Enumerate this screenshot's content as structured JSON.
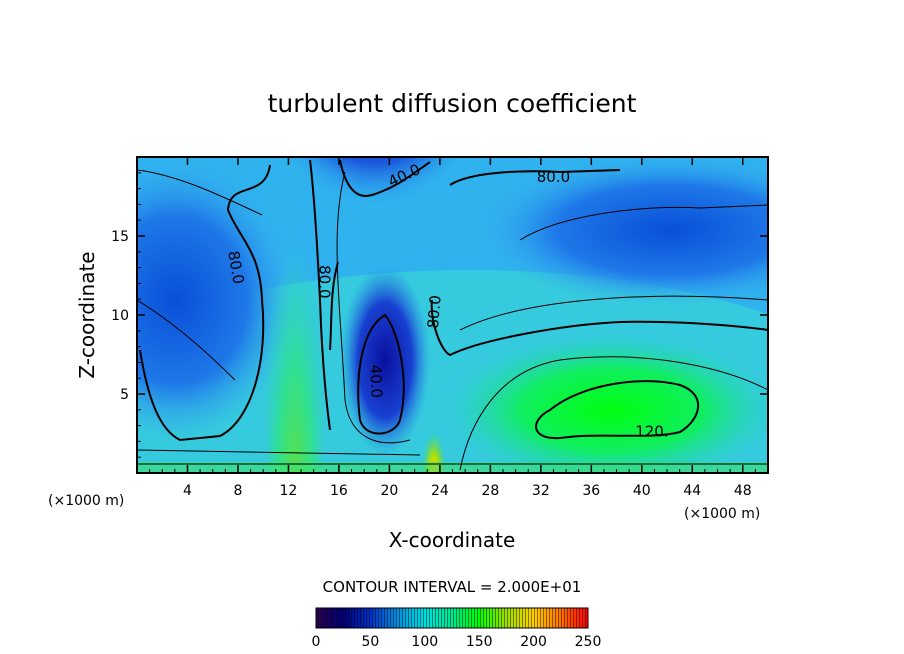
{
  "chart_data": {
    "type": "contour",
    "title": "turbulent diffusion coefficient",
    "xlabel": "X-coordinate",
    "ylabel": "Z-coordinate",
    "x_unit": "(×1000 m)",
    "z_unit": "(×1000 m)",
    "xlim": [
      0,
      50
    ],
    "ylim": [
      0,
      20
    ],
    "x_ticks": [
      4,
      8,
      12,
      16,
      20,
      24,
      28,
      32,
      36,
      40,
      44,
      48
    ],
    "y_ticks": [
      5,
      10,
      15
    ],
    "contour_interval_label": "CONTOUR INTERVAL = 2.000E+01",
    "contour_interval": 20,
    "contour_labels": [
      {
        "text": "80.0",
        "x": 33,
        "y": 18.7,
        "rotate": 0
      },
      {
        "text": "40.0",
        "x": 21.2,
        "y": 18.8,
        "rotate": -25
      },
      {
        "text": "80.0",
        "x": 7.8,
        "y": 13.0,
        "rotate": 80
      },
      {
        "text": "80.0",
        "x": 14.8,
        "y": 12.1,
        "rotate": 90
      },
      {
        "text": "80.0",
        "x": 23.6,
        "y": 10.2,
        "rotate": -85
      },
      {
        "text": "40.0",
        "x": 18.9,
        "y": 5.8,
        "rotate": 88
      },
      {
        "text": "120.",
        "x": 40.8,
        "y": 2.6,
        "rotate": 0
      }
    ],
    "colorbar": {
      "min": 0,
      "max": 250,
      "tick_values": [
        0,
        50,
        100,
        150,
        200,
        250
      ],
      "tick_labels": [
        "0",
        "50",
        "100",
        "150",
        "200",
        "250"
      ],
      "colors": [
        "#2a004e",
        "#00007a",
        "#0030c8",
        "#0090e0",
        "#00e0e0",
        "#00e890",
        "#00ff00",
        "#a0e000",
        "#ffd000",
        "#ff7000",
        "#ff0000"
      ]
    },
    "field_description": "2D field of turbulent diffusion coefficient over x 0-50 km, z 0-20 km; values roughly 30-120 with maxima near x=40 km, z=3 km",
    "grid": false,
    "legend": "colorbar-bottom"
  }
}
